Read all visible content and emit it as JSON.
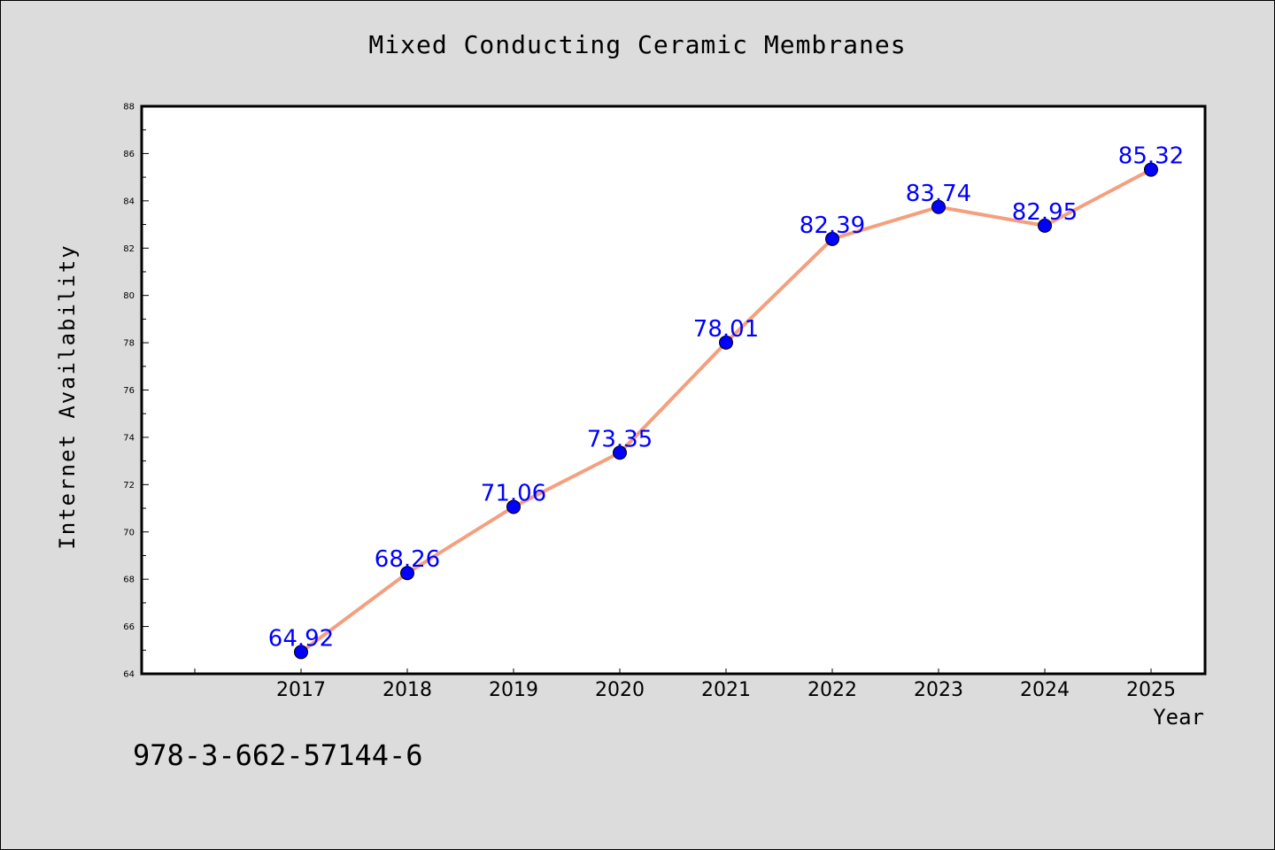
{
  "chart_data": {
    "type": "line",
    "title": "Mixed Conducting Ceramic Membranes",
    "xlabel": "Year",
    "ylabel": "Internet Availability",
    "categories": [
      "2017",
      "2018",
      "2019",
      "2020",
      "2021",
      "2022",
      "2023",
      "2024",
      "2025"
    ],
    "series": [
      {
        "values": [
          64.92,
          68.26,
          71.06,
          73.35,
          78.01,
          82.39,
          83.74,
          82.95,
          85.32
        ]
      }
    ],
    "data_labels": [
      "64.92",
      "68.26",
      "71.06",
      "73.35",
      "78.01",
      "82.39",
      "83.74",
      "82.95",
      "85.32"
    ],
    "ylim": [
      64,
      88
    ],
    "yticks": [
      "64",
      "66",
      "68",
      "70",
      "72",
      "74",
      "76",
      "78",
      "80",
      "82",
      "84",
      "86",
      "88"
    ],
    "grid": false,
    "line_color": "#f4a07e",
    "marker_color": "#0000ff",
    "label_color": "#0000ff"
  },
  "footer": {
    "code": "978-3-662-57144-6"
  }
}
